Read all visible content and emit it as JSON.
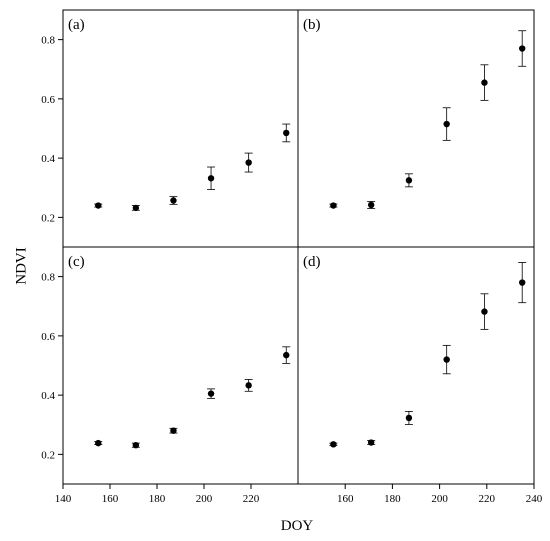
{
  "chart_data": {
    "type": "scatter",
    "xlabel": "DOY",
    "ylabel": "NDVI",
    "xlim": [
      140,
      240
    ],
    "ylim": [
      0.1,
      0.9
    ],
    "x_ticks_left": [
      "140",
      "160",
      "180",
      "200",
      "220"
    ],
    "x_ticks_right": [
      "160",
      "180",
      "200",
      "220",
      "240"
    ],
    "y_ticks": [
      "0.2",
      "0.4",
      "0.6",
      "0.8"
    ],
    "grid": false,
    "panels": [
      {
        "label": "(a)",
        "points": [
          {
            "x": 155,
            "y": 0.24,
            "err": 0.005
          },
          {
            "x": 171,
            "y": 0.232,
            "err": 0.008
          },
          {
            "x": 187,
            "y": 0.257,
            "err": 0.013
          },
          {
            "x": 203,
            "y": 0.332,
            "err": 0.038
          },
          {
            "x": 219,
            "y": 0.385,
            "err": 0.032
          },
          {
            "x": 235,
            "y": 0.485,
            "err": 0.03
          }
        ]
      },
      {
        "label": "(b)",
        "points": [
          {
            "x": 155,
            "y": 0.24,
            "err": 0.005
          },
          {
            "x": 171,
            "y": 0.242,
            "err": 0.012
          },
          {
            "x": 187,
            "y": 0.325,
            "err": 0.022
          },
          {
            "x": 203,
            "y": 0.515,
            "err": 0.055
          },
          {
            "x": 219,
            "y": 0.655,
            "err": 0.06
          },
          {
            "x": 235,
            "y": 0.77,
            "err": 0.06
          }
        ]
      },
      {
        "label": "(c)",
        "points": [
          {
            "x": 155,
            "y": 0.238,
            "err": 0.005
          },
          {
            "x": 171,
            "y": 0.231,
            "err": 0.007
          },
          {
            "x": 187,
            "y": 0.28,
            "err": 0.008
          },
          {
            "x": 203,
            "y": 0.405,
            "err": 0.016
          },
          {
            "x": 219,
            "y": 0.433,
            "err": 0.02
          },
          {
            "x": 235,
            "y": 0.535,
            "err": 0.028
          }
        ]
      },
      {
        "label": "(d)",
        "points": [
          {
            "x": 155,
            "y": 0.234,
            "err": 0.004
          },
          {
            "x": 171,
            "y": 0.24,
            "err": 0.007
          },
          {
            "x": 187,
            "y": 0.323,
            "err": 0.022
          },
          {
            "x": 203,
            "y": 0.52,
            "err": 0.048
          },
          {
            "x": 219,
            "y": 0.682,
            "err": 0.06
          },
          {
            "x": 235,
            "y": 0.78,
            "err": 0.068
          }
        ]
      }
    ]
  }
}
